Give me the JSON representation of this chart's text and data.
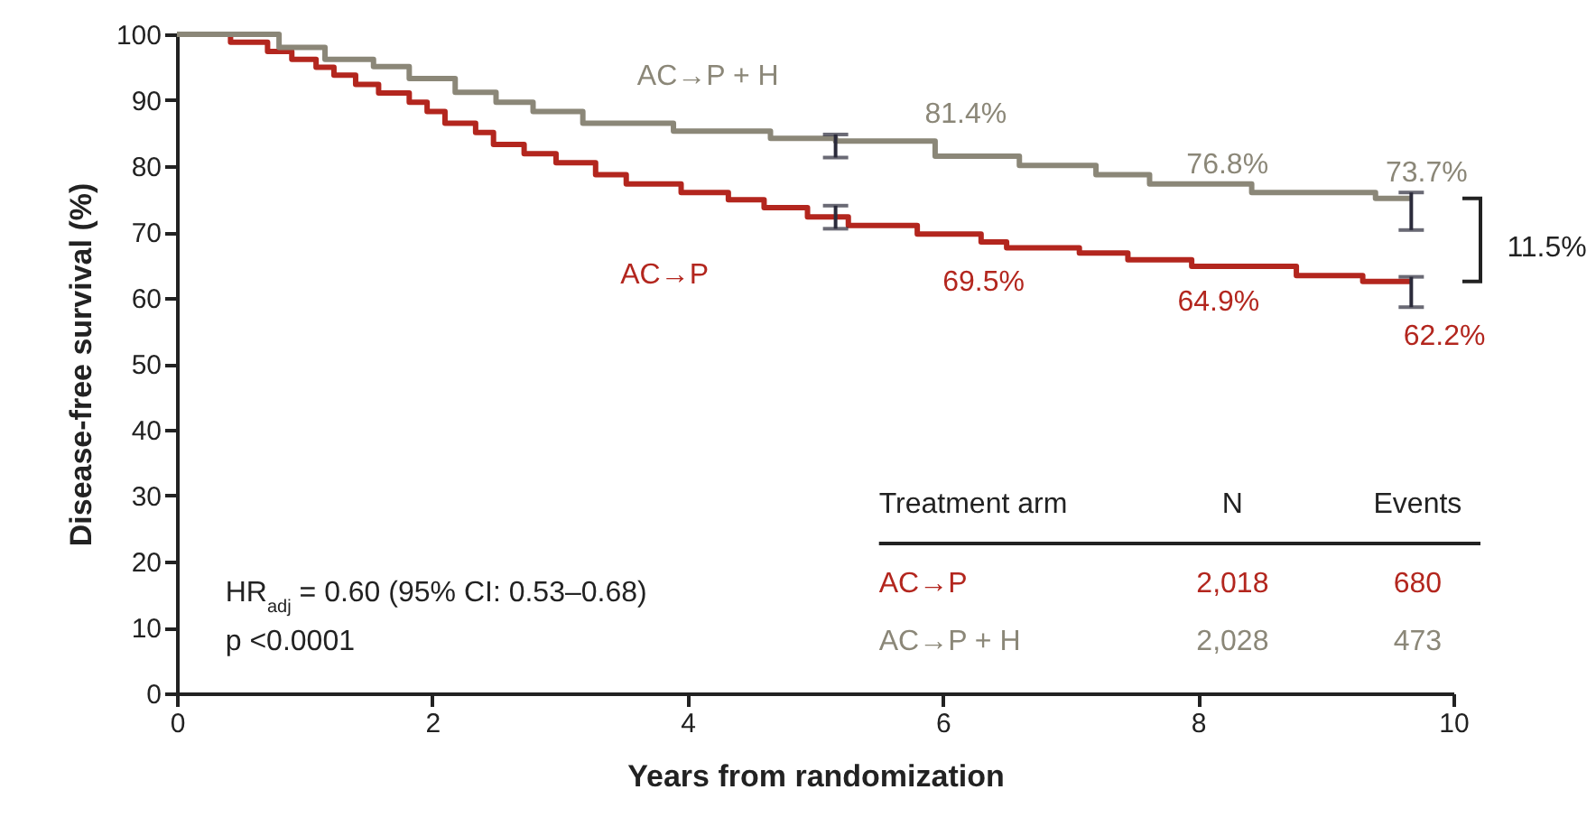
{
  "chart_data": {
    "type": "step",
    "xlabel": "Years from randomization",
    "ylabel": "Disease-free survival (%)",
    "xlim": [
      0,
      10
    ],
    "xticks": [
      0,
      2,
      4,
      6,
      8,
      10
    ],
    "ylim": [
      0,
      100
    ],
    "yticks": [
      0,
      10,
      20,
      30,
      40,
      50,
      60,
      70,
      80,
      90,
      100
    ],
    "grid": false,
    "line_style": "solid",
    "marker": "none",
    "series": [
      {
        "name": "AC→P",
        "color": "#b3261e",
        "x": [
          0,
          0.42,
          0.71,
          0.9,
          1.09,
          1.23,
          1.4,
          1.58,
          1.82,
          1.96,
          2.1,
          2.34,
          2.48,
          2.72,
          2.97,
          3.28,
          3.52,
          3.95,
          4.32,
          4.6,
          4.94,
          5.16,
          5.26,
          5.8,
          6.3,
          6.5,
          7.07,
          7.45,
          7.95,
          8.77,
          9.29,
          9.67
        ],
        "values": [
          100,
          98.8,
          97.4,
          96.2,
          95,
          93.8,
          92.4,
          91.1,
          89.7,
          88.3,
          86.5,
          85.1,
          83.3,
          81.9,
          80.5,
          78.7,
          77.3,
          76,
          74.9,
          73.7,
          72.3,
          72.3,
          71,
          69.7,
          68.5,
          67.6,
          66.8,
          65.8,
          64.8,
          63.4,
          62.5,
          62.5
        ],
        "errors": [
          null,
          null,
          null,
          null,
          null,
          null,
          null,
          null,
          null,
          null,
          null,
          null,
          null,
          null,
          null,
          null,
          null,
          null,
          null,
          null,
          null,
          [
            70.5,
            74
          ],
          null,
          null,
          null,
          null,
          null,
          null,
          null,
          null,
          null,
          [
            58.6,
            63.2
          ]
        ]
      },
      {
        "name": "AC→P + H",
        "color": "#8b8778",
        "x": [
          0,
          0.8,
          1.16,
          1.54,
          1.82,
          2.18,
          2.5,
          2.79,
          3.18,
          3.89,
          4.65,
          5.16,
          5.94,
          6.6,
          7.2,
          7.62,
          8.42,
          9.39,
          9.67
        ],
        "values": [
          100,
          98,
          96.2,
          95.1,
          93.3,
          91.2,
          89.7,
          88.3,
          86.5,
          85.3,
          84.2,
          83.8,
          81.5,
          80.1,
          78.7,
          77.3,
          76,
          75.1,
          75.1
        ],
        "errors": [
          null,
          null,
          null,
          null,
          null,
          null,
          null,
          null,
          null,
          null,
          null,
          [
            81.3,
            84.8
          ],
          null,
          null,
          null,
          null,
          null,
          null,
          [
            70.3,
            76
          ]
        ]
      }
    ],
    "annotations": [
      "81.4%",
      "76.8%",
      "73.7%",
      "69.5%",
      "64.9%",
      "62.2%",
      "11.5%",
      "HR$_{adj}$ = 0.60 (95% CI: 0.53–0.68)",
      "p <0.0001",
      "Treatment arm",
      "N",
      "Events",
      "AC→P",
      "2,018",
      "680",
      "AC→P + H",
      "2,028",
      "473"
    ]
  }
}
